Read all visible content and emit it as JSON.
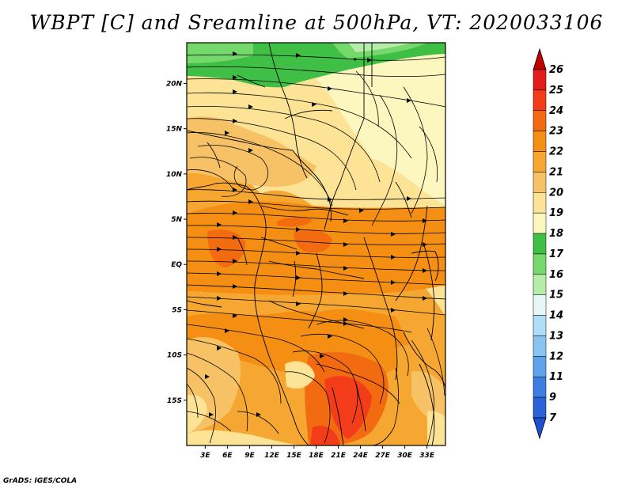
{
  "title": "WBPT [C] and Sreamline at 500hPa, VT: 2020033106",
  "credit": "GrADS: IGES/COLA",
  "y_axis": {
    "ticks": [
      "20N",
      "15N",
      "10N",
      "5N",
      "EQ",
      "5S",
      "10S",
      "15S"
    ],
    "values": [
      20,
      15,
      10,
      5,
      0,
      -5,
      -10,
      -15
    ]
  },
  "x_axis": {
    "ticks": [
      "3E",
      "6E",
      "9E",
      "12E",
      "15E",
      "18E",
      "21E",
      "24E",
      "27E",
      "30E",
      "33E"
    ],
    "values": [
      3,
      6,
      9,
      12,
      15,
      18,
      21,
      24,
      27,
      30,
      33
    ]
  },
  "map_extent": {
    "lon": [
      0.5,
      35.5
    ],
    "lat": [
      -20,
      24.5
    ]
  },
  "colorbar": {
    "labels": [
      "26",
      "25",
      "24",
      "23",
      "22",
      "21",
      "20",
      "19",
      "18",
      "17",
      "16",
      "15",
      "14",
      "13",
      "12",
      "11",
      "9",
      "7"
    ],
    "colors": [
      "#c10000",
      "#e21b1b",
      "#f23c1a",
      "#f26b11",
      "#f58f14",
      "#f5a732",
      "#f7c265",
      "#fce396",
      "#fcf6bf",
      "#3fbf45",
      "#75d86b",
      "#b7edaa",
      "#e6f7f5",
      "#b1dcf7",
      "#88c3f2",
      "#5ea2ec",
      "#3d7fe0",
      "#2a62d8",
      "#1f4fd1"
    ]
  }
}
